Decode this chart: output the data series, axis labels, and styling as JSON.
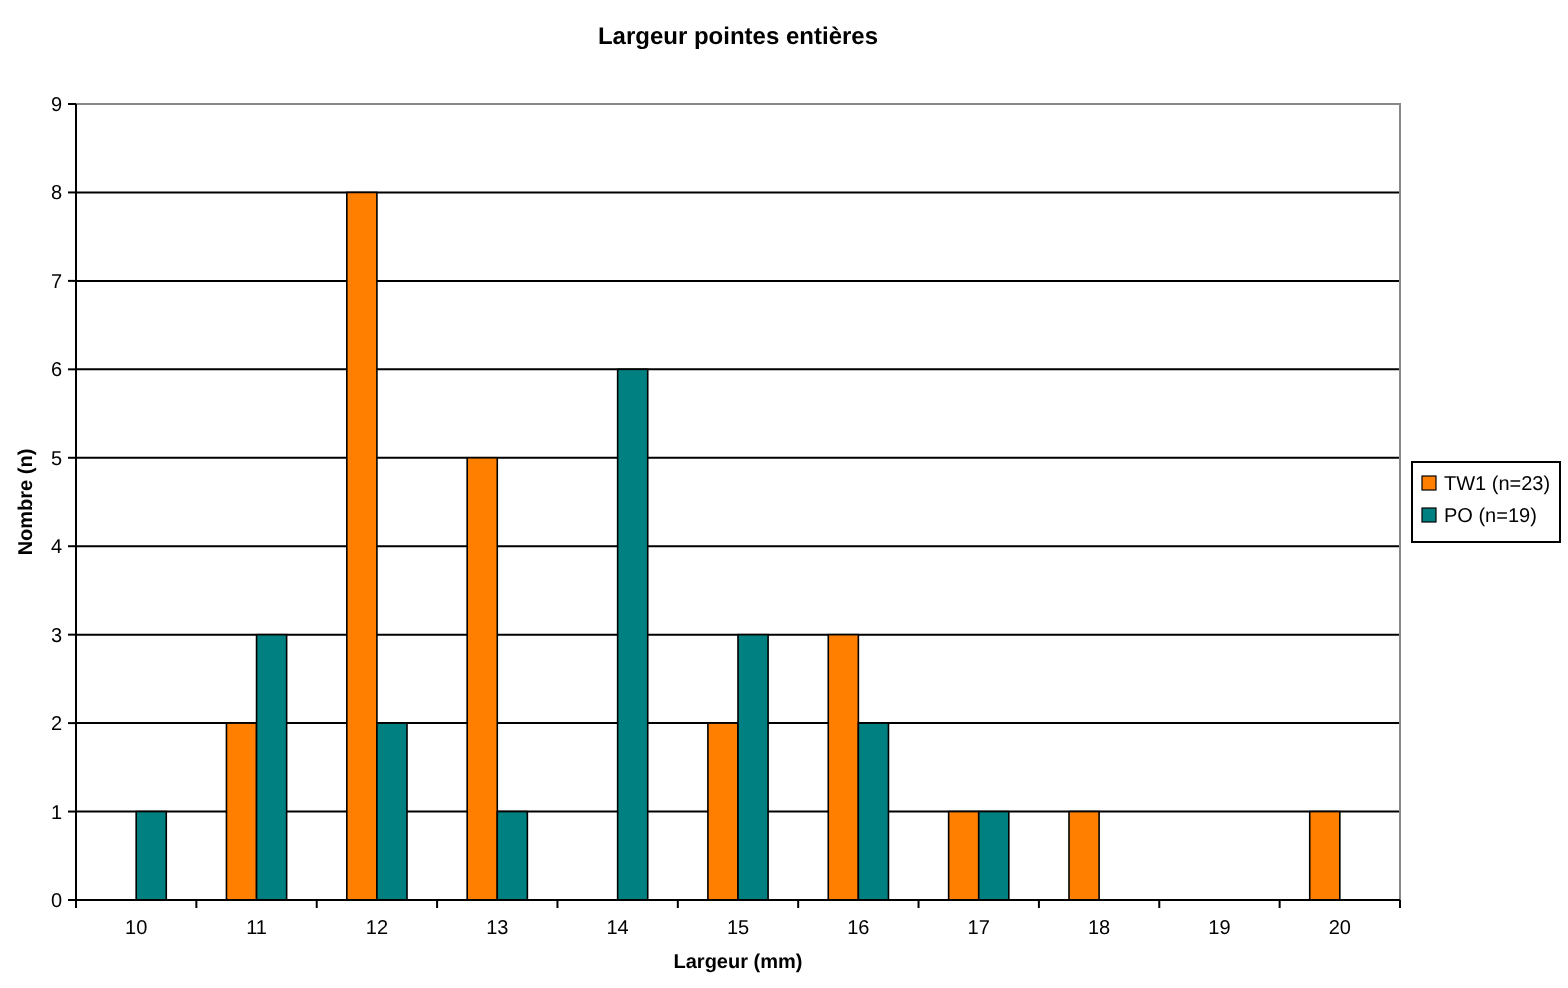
{
  "chart_data": {
    "type": "bar",
    "title": "Largeur pointes entières",
    "xlabel": "Largeur (mm)",
    "ylabel": "Nombre (n)",
    "categories": [
      "10",
      "11",
      "12",
      "13",
      "14",
      "15",
      "16",
      "17",
      "18",
      "19",
      "20"
    ],
    "series": [
      {
        "name": "TW1 (n=23)",
        "color": "#ff8000",
        "values": [
          0,
          2,
          8,
          5,
          0,
          2,
          3,
          1,
          1,
          0,
          1
        ]
      },
      {
        "name": "PO (n=19)",
        "color": "#008080",
        "values": [
          1,
          3,
          2,
          1,
          6,
          3,
          2,
          1,
          0,
          0,
          0
        ]
      }
    ],
    "ylim": [
      0,
      9
    ],
    "yticks": [
      0,
      1,
      2,
      3,
      4,
      5,
      6,
      7,
      8,
      9
    ],
    "grid": "y",
    "legend": "right"
  }
}
